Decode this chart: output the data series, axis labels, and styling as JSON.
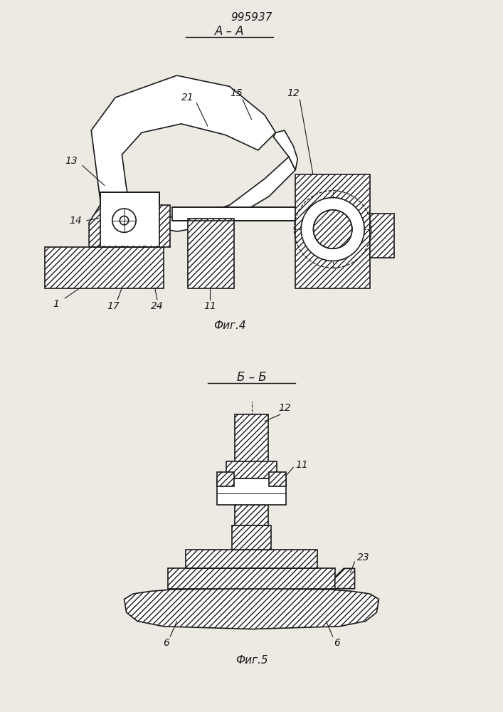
{
  "patent_number": "995937",
  "fig4_label": "А – А",
  "fig4_caption": "Фиг.4",
  "fig5_label": "Б – Б",
  "fig5_caption": "Фиг.5",
  "bg_color": "#ede9e3",
  "line_color": "#1a1a1a",
  "hatch_pattern": "////",
  "lw": 1.2,
  "font_size_label": 11,
  "font_size_number": 10,
  "font_size_patent": 11
}
